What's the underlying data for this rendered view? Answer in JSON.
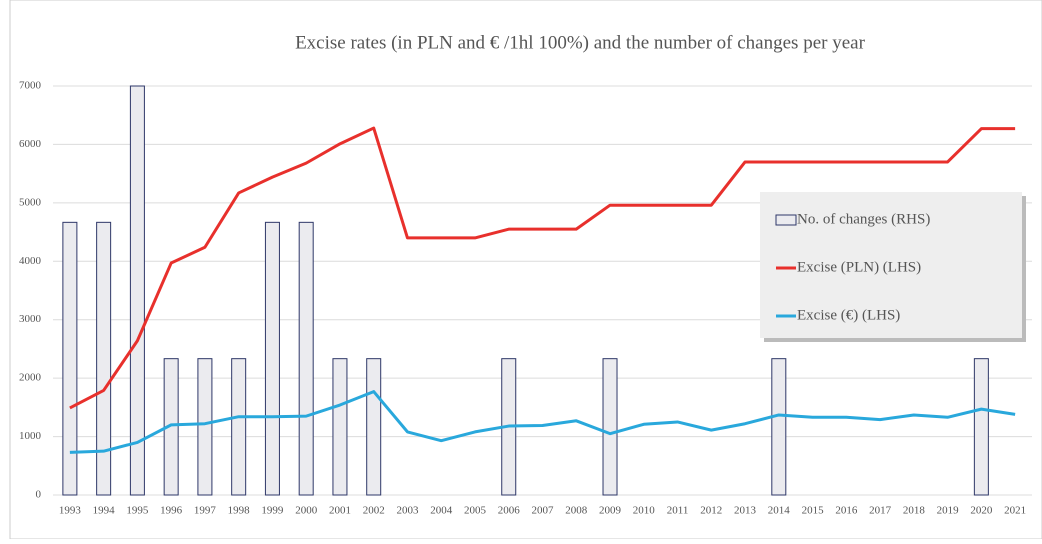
{
  "chart_data": {
    "type": "combo",
    "title": "Excise rates (in PLN and € /1hl 100%) and the number of changes per year",
    "categories": [
      "1993",
      "1994",
      "1995",
      "1996",
      "1997",
      "1998",
      "1999",
      "2000",
      "2001",
      "2002",
      "2003",
      "2004",
      "2005",
      "2006",
      "2007",
      "2008",
      "2009",
      "2010",
      "2011",
      "2012",
      "2013",
      "2014",
      "2015",
      "2016",
      "2017",
      "2018",
      "2019",
      "2020",
      "2021"
    ],
    "ylim": [
      0,
      7000
    ],
    "yticks": [
      0,
      1000,
      2000,
      3000,
      4000,
      5000,
      6000,
      7000
    ],
    "y2lim": [
      0,
      3
    ],
    "grid": true,
    "legend": "right",
    "series": [
      {
        "name": "No. of changes (RHS)",
        "type": "bar",
        "axis": "y2",
        "color": "#ebebef",
        "stroke": "#2e3768",
        "values": [
          2,
          2,
          3,
          1,
          1,
          1,
          2,
          2,
          1,
          1,
          0,
          0,
          0,
          1,
          0,
          0,
          1,
          0,
          0,
          0,
          0,
          1,
          0,
          0,
          0,
          0,
          0,
          1,
          0
        ]
      },
      {
        "name": "Excise (PLN) (LHS)",
        "type": "line",
        "color": "#e8302c",
        "values": [
          1490,
          1790,
          2640,
          3970,
          4240,
          5170,
          5440,
          5680,
          6010,
          6280,
          4400,
          4400,
          4400,
          4550,
          4550,
          4550,
          4960,
          4960,
          4960,
          4960,
          5700,
          5700,
          5700,
          5700,
          5700,
          5700,
          5700,
          6270,
          6270
        ]
      },
      {
        "name": "Excise (€) (LHS)",
        "type": "line",
        "color": "#29a8dc",
        "values": [
          730,
          750,
          900,
          1200,
          1220,
          1340,
          1340,
          1350,
          1540,
          1770,
          1080,
          930,
          1080,
          1180,
          1190,
          1270,
          1050,
          1210,
          1250,
          1110,
          1220,
          1370,
          1330,
          1330,
          1290,
          1370,
          1330,
          1470,
          1380
        ]
      }
    ]
  }
}
